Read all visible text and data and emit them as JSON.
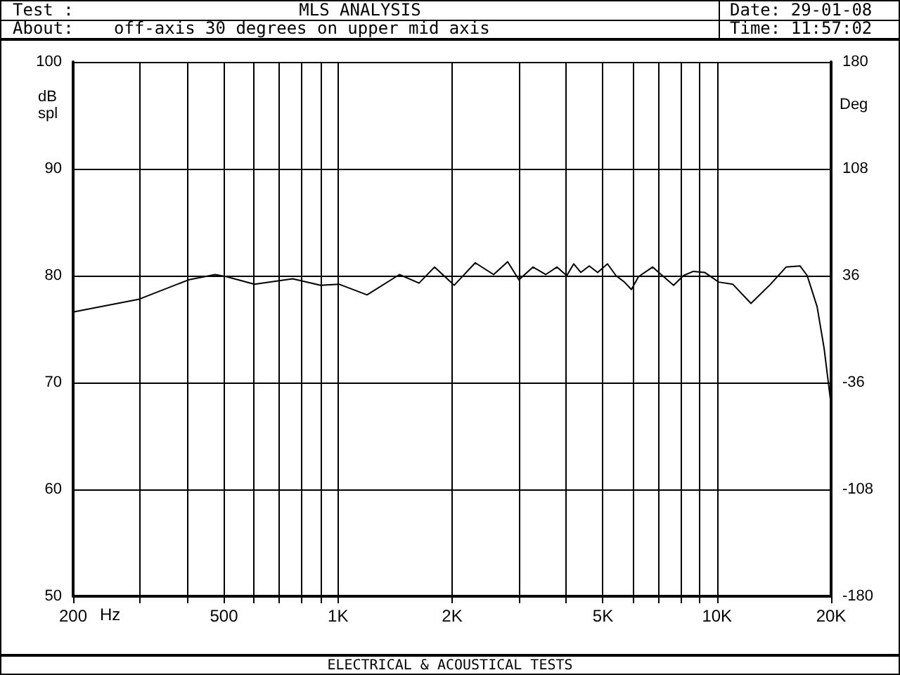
{
  "chart_data": {
    "type": "line",
    "title": "MLS ANALYSIS",
    "subtitle": "off-axis 30 degrees on upper mid axis",
    "xlabel": "Hz",
    "ylabel": "dB spl",
    "y2label": "Deg",
    "annotations": [
      "Test :",
      "About:",
      "Date: 29-01-08",
      "Time: 11:57:02",
      "ELECTRICAL & ACOUSTICAL TESTS"
    ],
    "log": "x",
    "grid": true,
    "marker": "none",
    "line_style": "solid",
    "xlim": [
      200,
      20000
    ],
    "xticks": [
      200,
      {
        "value": 300,
        "label": null
      },
      {
        "value": 400,
        "label": null
      },
      500,
      {
        "value": 600,
        "label": null
      },
      {
        "value": 700,
        "label": null
      },
      {
        "value": 800,
        "label": null
      },
      {
        "value": 900,
        "label": null
      },
      {
        "value": 1000,
        "label": "1K"
      },
      {
        "value": 2000,
        "label": "2K"
      },
      {
        "value": 3000,
        "label": null
      },
      {
        "value": 4000,
        "label": null
      },
      {
        "value": 5000,
        "label": "5K"
      },
      {
        "value": 6000,
        "label": null
      },
      {
        "value": 7000,
        "label": null
      },
      {
        "value": 8000,
        "label": null
      },
      {
        "value": 9000,
        "label": null
      },
      {
        "value": 10000,
        "label": "10K"
      },
      {
        "value": 20000,
        "label": "20K"
      }
    ],
    "ylim": [
      50,
      100
    ],
    "yticks": [
      50,
      60,
      70,
      80,
      90,
      100
    ],
    "y2lim": [
      -180,
      180
    ],
    "y2ticks": [
      -180,
      -108,
      -36,
      36,
      108,
      180
    ],
    "series": [
      {
        "color": "#000000",
        "x": [
          200,
          299,
          403,
          474,
          508,
          602,
          759,
          900,
          1005,
          1193,
          1452,
          1636,
          1797,
          2026,
          2302,
          2573,
          2803,
          3002,
          3270,
          3531,
          3780,
          4013,
          4188,
          4371,
          4600,
          4842,
          5140,
          5413,
          5696,
          5945,
          6205,
          6760,
          7177,
          7681,
          8154,
          8662,
          9274,
          10103,
          11002,
          12290,
          13850,
          15213,
          16572,
          17298,
          18370,
          19170,
          20000
        ],
        "values": [
          76.6,
          77.8,
          79.6,
          80.1,
          79.9,
          79.2,
          79.7,
          79.1,
          79.2,
          78.2,
          80.1,
          79.3,
          80.8,
          79.1,
          81.2,
          80.1,
          81.3,
          79.6,
          80.8,
          80.1,
          80.8,
          80.0,
          81.1,
          80.3,
          80.9,
          80.3,
          81.1,
          80.0,
          79.4,
          78.7,
          79.9,
          80.8,
          80.0,
          79.1,
          80.0,
          80.4,
          80.3,
          79.4,
          79.2,
          77.4,
          79.2,
          80.8,
          80.9,
          80.0,
          77.1,
          73.2,
          67.9
        ]
      }
    ]
  }
}
